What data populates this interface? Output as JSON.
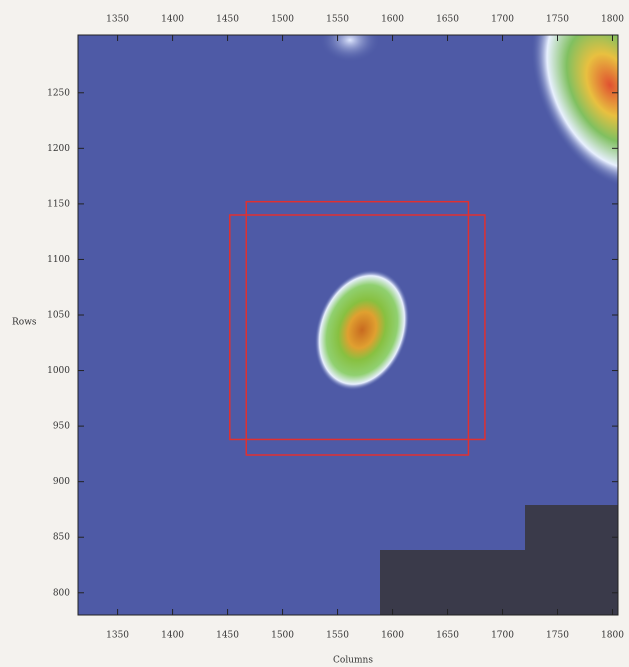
{
  "chart_data": {
    "type": "image",
    "xlabel": "Columns",
    "ylabel": "Rows",
    "xlim": [
      1314,
      1805
    ],
    "ylim": [
      780,
      1302
    ],
    "xticks": [
      1350,
      1400,
      1450,
      1500,
      1550,
      1600,
      1650,
      1700,
      1750,
      1800
    ],
    "yticks": [
      800,
      850,
      900,
      950,
      1000,
      1050,
      1100,
      1150,
      1200,
      1250
    ],
    "boxes": [
      {
        "xlim": [
          1452,
          1684
        ],
        "ylim": [
          938,
          1140
        ],
        "color": "#e03030"
      },
      {
        "xlim": [
          1467,
          1669
        ],
        "ylim": [
          924,
          1152
        ],
        "color": "#e03030"
      }
    ]
  }
}
